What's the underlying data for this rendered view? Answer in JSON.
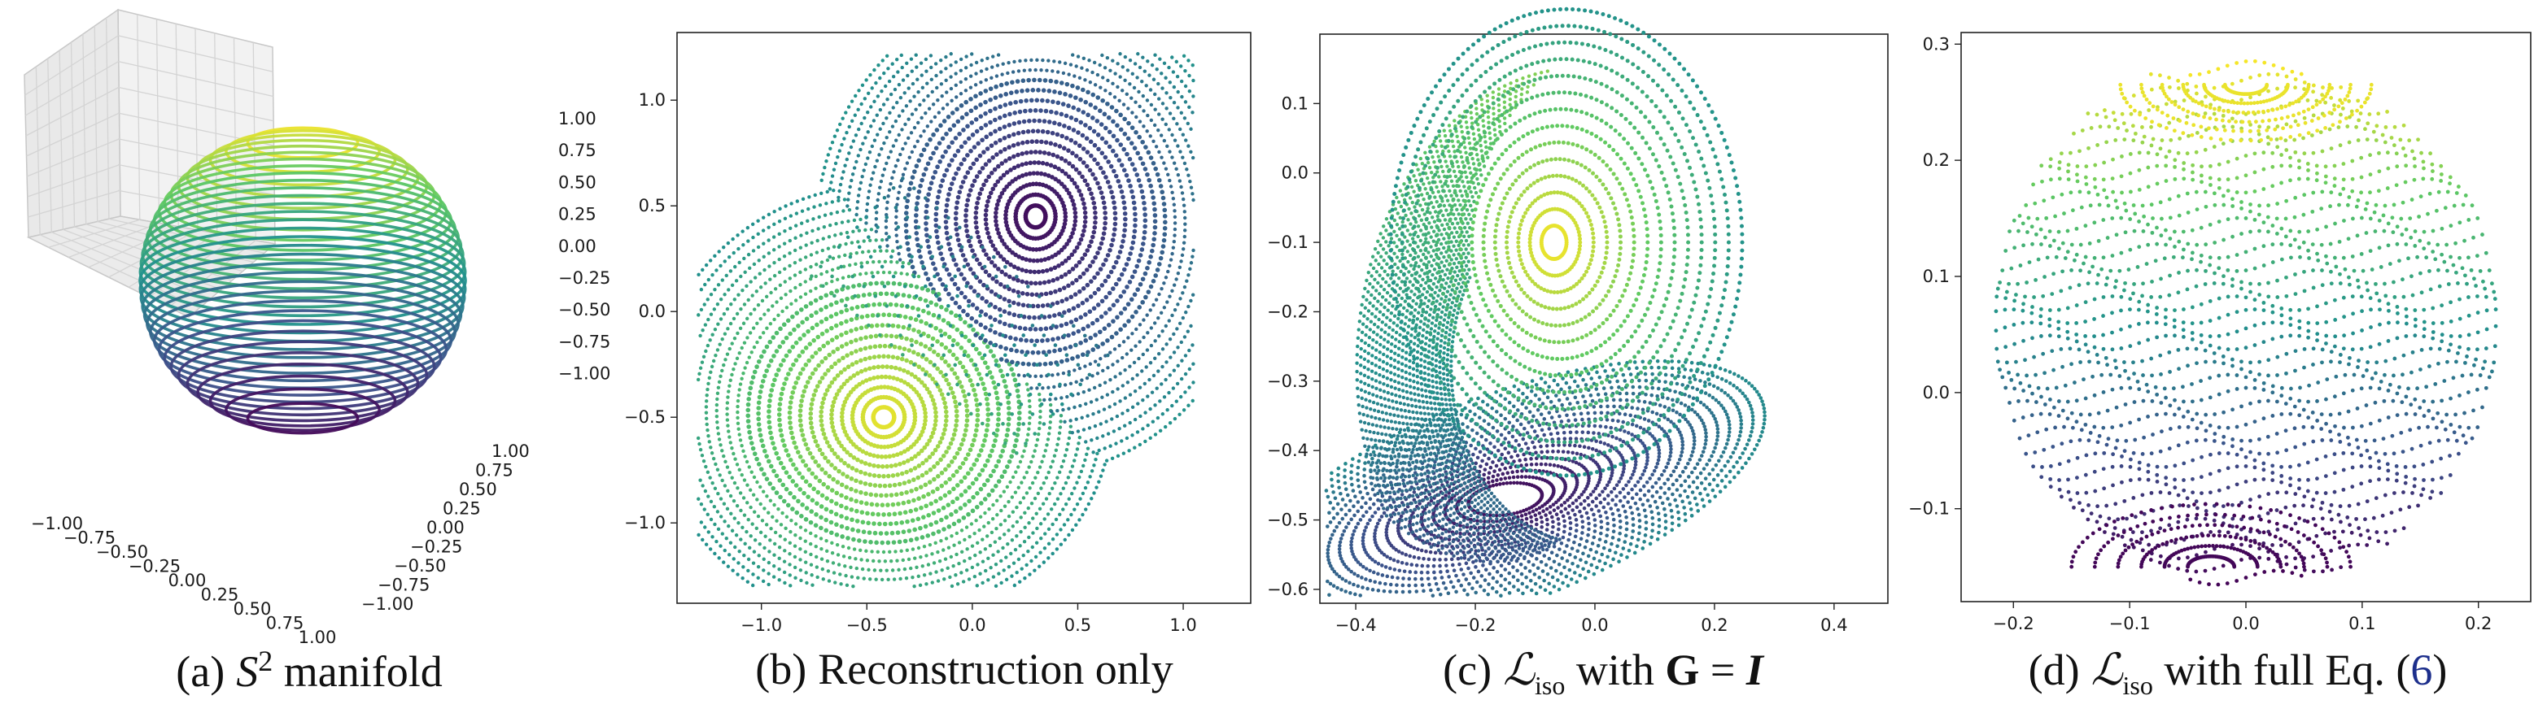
{
  "captions": [
    {
      "label": "(a)",
      "sym": "S",
      "sup": "2",
      "text": "manifold"
    },
    {
      "label": "(b)",
      "text": "Reconstruction only"
    },
    {
      "label": "(c)",
      "sym": "ℒ",
      "sub": "iso",
      "mid": "with",
      "g": "G",
      "eq": "=",
      "i": "I"
    },
    {
      "label": "(d)",
      "sym": "ℒ",
      "sub": "iso",
      "mid": "with full Eq. (",
      "ref": "6",
      "end": ")"
    }
  ],
  "chart_data": [
    {
      "type": "scatter",
      "title": "",
      "ticks": {
        "x": [
          "−1.00",
          "−0.75",
          "−0.50",
          "−0.25",
          "0.00",
          "0.25",
          "0.50",
          "0.75",
          "1.00"
        ],
        "y": [
          "−1.00",
          "−0.75",
          "−0.50",
          "−0.25",
          "0.00",
          "0.25",
          "0.50",
          "0.75",
          "1.00"
        ],
        "z": [
          "1.00",
          "0.75",
          "0.50",
          "0.25",
          "0.00",
          "−0.25",
          "−0.50",
          "−0.75",
          "−1.00"
        ]
      },
      "xlim": [
        -1,
        1
      ],
      "ylim": [
        -1,
        1
      ],
      "zlim": [
        -1,
        1
      ],
      "grid": true,
      "colormap": [
        "#440154",
        "#3b528b",
        "#21918c",
        "#5ec962",
        "#fde725"
      ],
      "shape": "sphere of latitude rings, color by height"
    },
    {
      "type": "scatter",
      "title": "",
      "xticks": [
        -1.0,
        -0.5,
        0.0,
        0.5,
        1.0
      ],
      "xtick_labels": [
        "−1.0",
        "−0.5",
        "0.0",
        "0.5",
        "1.0"
      ],
      "yticks": [
        1.0,
        0.5,
        0.0,
        -0.5,
        -1.0
      ],
      "ytick_labels": [
        "1.0",
        "0.5",
        "0.0",
        "−0.5",
        "−1.0"
      ],
      "xlim": [
        -1.4,
        1.32
      ],
      "ylim": [
        -1.38,
        1.32
      ],
      "grid": false,
      "centers": [
        {
          "x": 0.3,
          "y": 0.45,
          "color": "#440154"
        },
        {
          "x": -0.42,
          "y": -0.5,
          "color": "#fde725"
        }
      ]
    },
    {
      "type": "scatter",
      "title": "",
      "xticks": [
        -0.4,
        -0.2,
        0.0,
        0.2,
        0.4
      ],
      "xtick_labels": [
        "−0.4",
        "−0.2",
        "0.0",
        "0.2",
        "0.4"
      ],
      "yticks": [
        0.1,
        0.0,
        -0.1,
        -0.2,
        -0.3,
        -0.4,
        -0.5,
        -0.6
      ],
      "ytick_labels": [
        "0.1",
        "0.0",
        "−0.1",
        "−0.2",
        "−0.3",
        "−0.4",
        "−0.5",
        "−0.6"
      ],
      "xlim": [
        -0.46,
        0.49
      ],
      "ylim": [
        -0.62,
        0.2
      ],
      "grid": false,
      "centers": [
        {
          "x": -0.07,
          "y": -0.1,
          "color": "#fde725"
        },
        {
          "x": -0.15,
          "y": -0.47,
          "color": "#440154"
        }
      ]
    },
    {
      "type": "scatter",
      "title": "",
      "xticks": [
        -0.2,
        -0.1,
        0.0,
        0.1,
        0.2
      ],
      "xtick_labels": [
        "−0.2",
        "−0.1",
        "0.0",
        "0.1",
        "0.2"
      ],
      "yticks": [
        0.3,
        0.2,
        0.1,
        0.0,
        -0.1
      ],
      "ytick_labels": [
        "0.3",
        "0.2",
        "0.1",
        "0.0",
        "−0.1"
      ],
      "xlim": [
        -0.245,
        0.245
      ],
      "ylim": [
        -0.18,
        0.31
      ],
      "grid": false,
      "shape": "disk of horizontal bands, yellow top to purple bottom"
    }
  ]
}
